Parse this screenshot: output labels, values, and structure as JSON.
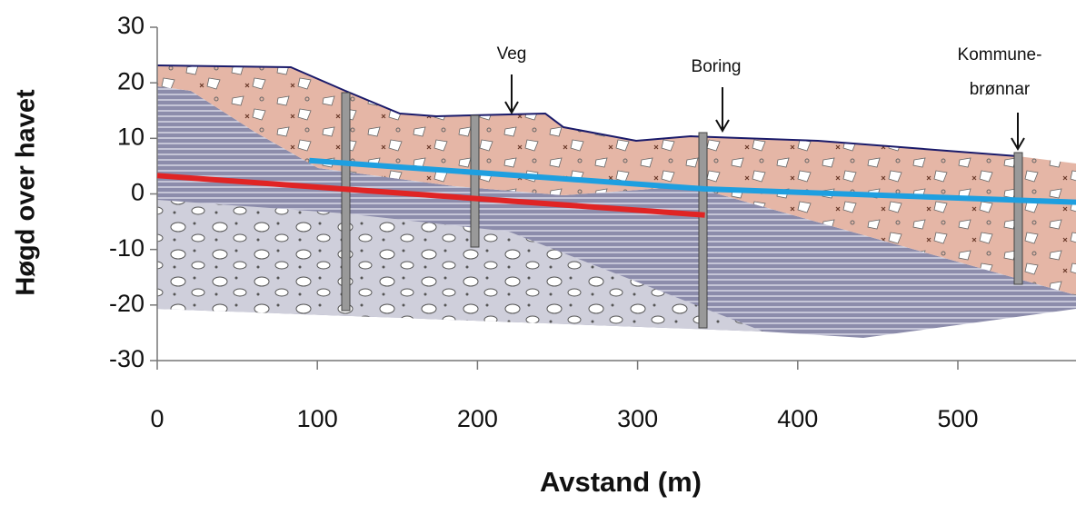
{
  "chart_data": {
    "type": "line",
    "y_label": "Høgd over havet",
    "x_label": "Avstand (m)",
    "annotations": [
      "Veg",
      "Boring",
      "Kommune-",
      "brønnar"
    ],
    "xlim": [
      0,
      574
    ],
    "xticks": [
      0,
      100,
      200,
      300,
      400,
      500
    ],
    "ylim": [
      -30,
      30
    ],
    "yticks": [
      -30,
      -20,
      -10,
      0,
      10,
      20,
      30
    ],
    "series": [
      {
        "color": "#e02424",
        "x": [
          0,
          342
        ],
        "values": [
          3.3,
          -3.8
        ]
      },
      {
        "color": "#1e9fe0",
        "x": [
          95,
          342,
          574
        ],
        "values": [
          6,
          0.9,
          -1.5
        ]
      }
    ]
  }
}
